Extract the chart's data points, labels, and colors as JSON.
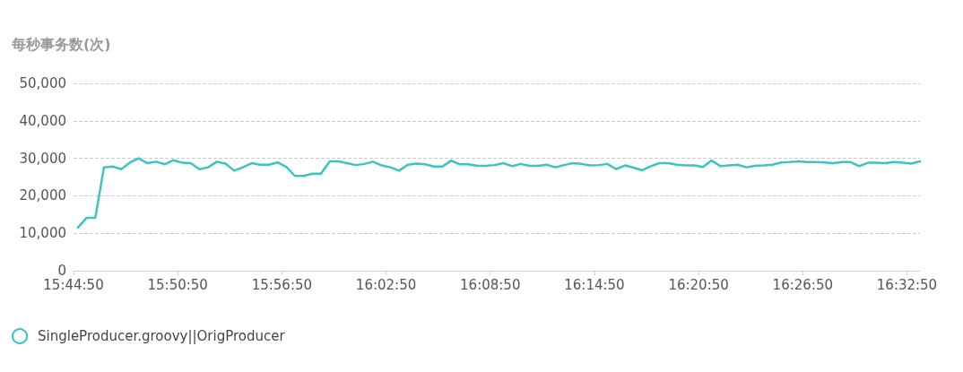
{
  "chart_data": {
    "type": "line",
    "ylabel": "每秒事务数(次)",
    "x": [
      15.7514,
      15.7597,
      15.7681,
      15.7764,
      15.7847,
      15.7931,
      15.8014,
      15.8097,
      15.8181,
      15.8264,
      15.8347,
      15.8431,
      15.8514,
      15.8597,
      15.8681,
      15.8764,
      15.8847,
      15.8931,
      15.9014,
      15.9097,
      15.9181,
      15.9264,
      15.9347,
      15.9431,
      15.9514,
      15.9597,
      15.9681,
      15.9764,
      15.9847,
      15.9931,
      16.0014,
      16.0097,
      16.0181,
      16.0264,
      16.0347,
      16.0431,
      16.0514,
      16.0597,
      16.0681,
      16.0764,
      16.0847,
      16.0931,
      16.1014,
      16.1097,
      16.1181,
      16.1264,
      16.1347,
      16.1431,
      16.1514,
      16.1597,
      16.1681,
      16.1764,
      16.1847,
      16.1931,
      16.2014,
      16.2097,
      16.2181,
      16.2264,
      16.2347,
      16.2431,
      16.2514,
      16.2597,
      16.2681,
      16.2764,
      16.2847,
      16.2931,
      16.3014,
      16.3097,
      16.3181,
      16.3264,
      16.3347,
      16.3431,
      16.3514,
      16.3597,
      16.3681,
      16.3764,
      16.3847,
      16.3931,
      16.4014,
      16.4097,
      16.4181,
      16.4264,
      16.4347,
      16.4431,
      16.4514,
      16.4597,
      16.4681,
      16.4764,
      16.4847,
      16.4931,
      16.5014,
      16.5097,
      16.5181,
      16.5264,
      16.5347,
      16.5431,
      16.5514,
      16.5597
    ],
    "series": [
      {
        "name": "SingleProducer.groovy||OrigProducer",
        "color": "#3cc3c3",
        "values": [
          11500,
          14100,
          14100,
          27600,
          27800,
          27100,
          28900,
          30000,
          28700,
          29100,
          28400,
          29500,
          28800,
          28700,
          27100,
          27600,
          29100,
          28600,
          26700,
          27600,
          28700,
          28300,
          28300,
          28900,
          27700,
          25300,
          25300,
          25900,
          25900,
          29200,
          29200,
          28700,
          28200,
          28500,
          29100,
          28100,
          27600,
          26700,
          28300,
          28600,
          28400,
          27800,
          27800,
          29400,
          28400,
          28400,
          28000,
          28000,
          28200,
          28700,
          27900,
          28500,
          28000,
          28000,
          28300,
          27600,
          28200,
          28700,
          28500,
          28100,
          28200,
          28500,
          27100,
          28100,
          27500,
          26800,
          27900,
          28700,
          28700,
          28300,
          28100,
          28100,
          27700,
          29400,
          27900,
          28100,
          28300,
          27600,
          28000,
          28100,
          28300,
          28900,
          29000,
          29200,
          29000,
          29000,
          28900,
          28700,
          29000,
          29000,
          27900,
          28800,
          28800,
          28700,
          29000,
          28800,
          28600,
          29200
        ]
      }
    ],
    "xlim": [
      15.7472,
      16.5597
    ],
    "xticks": [
      {
        "value": 15.7472,
        "label": "15:44:50"
      },
      {
        "value": 15.8472,
        "label": "15:50:50"
      },
      {
        "value": 15.9472,
        "label": "15:56:50"
      },
      {
        "value": 16.0472,
        "label": "16:02:50"
      },
      {
        "value": 16.1472,
        "label": "16:08:50"
      },
      {
        "value": 16.2472,
        "label": "16:14:50"
      },
      {
        "value": 16.3472,
        "label": "16:20:50"
      },
      {
        "value": 16.4472,
        "label": "16:26:50"
      },
      {
        "value": 16.5472,
        "label": "16:32:50"
      }
    ],
    "ylim": [
      0,
      50000
    ],
    "yticks": [
      0,
      {
        "value": 10000,
        "label": "10,000"
      },
      {
        "value": 20000,
        "label": "20,000"
      },
      {
        "value": 30000,
        "label": "30,000"
      },
      {
        "value": 40000,
        "label": "40,000"
      },
      {
        "value": 50000,
        "label": "50,000"
      }
    ],
    "grid": "y",
    "legend": "bottom left",
    "marker": "none",
    "line_style": "solid"
  }
}
